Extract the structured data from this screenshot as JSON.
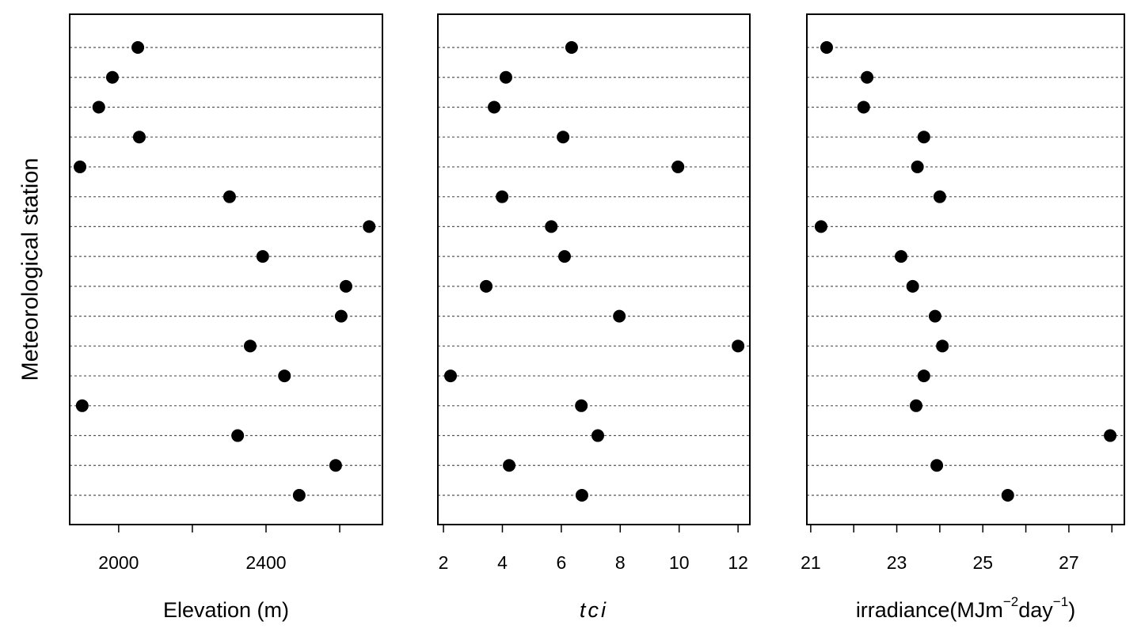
{
  "chart_data": [
    {
      "type": "dot",
      "y_label": "Meteorological station",
      "x_label": [
        {
          "text": "Elevation (m)"
        }
      ],
      "categories": [
        null,
        null,
        null,
        null,
        null,
        null,
        null,
        null,
        null,
        null,
        null,
        null,
        null,
        null,
        null,
        null
      ],
      "values": [
        2052,
        1983,
        1946,
        2056,
        1895,
        2301,
        2680,
        2391,
        2617,
        2604,
        2357,
        2450,
        1901,
        2323,
        2589,
        2490
      ],
      "color": "#000000",
      "xlim": [
        1867,
        2716
      ],
      "xticks": [
        2000,
        {
          "value": 2200,
          "label": null
        },
        2400,
        {
          "value": 2600,
          "label": null
        }
      ],
      "grid": true
    },
    {
      "type": "dot",
      "x_label": [
        {
          "text": "tci",
          "italic": true
        }
      ],
      "categories": [
        null,
        null,
        null,
        null,
        null,
        null,
        null,
        null,
        null,
        null,
        null,
        null,
        null,
        null,
        null,
        null
      ],
      "values": [
        6.35,
        4.12,
        3.72,
        6.06,
        9.96,
        3.99,
        5.66,
        6.11,
        3.45,
        7.97,
        12.0,
        2.24,
        6.68,
        7.24,
        4.23,
        6.7
      ],
      "color": "#000000",
      "xlim": [
        1.81,
        12.4
      ],
      "xticks": [
        2,
        4,
        6,
        8,
        10,
        12
      ],
      "grid": true
    },
    {
      "type": "dot",
      "x_label": [
        {
          "text": "irradiance(MJm"
        },
        {
          "text": "−2",
          "sup": true
        },
        {
          "text": "day"
        },
        {
          "text": "−1",
          "sup": true
        },
        {
          "text": ")"
        }
      ],
      "categories": [
        null,
        null,
        null,
        null,
        null,
        null,
        null,
        null,
        null,
        null,
        null,
        null,
        null,
        null,
        null,
        null
      ],
      "values": [
        21.37,
        22.31,
        22.23,
        23.63,
        23.48,
        24.0,
        21.24,
        23.1,
        23.37,
        23.89,
        24.06,
        23.63,
        23.45,
        27.96,
        23.93,
        25.58
      ],
      "color": "#000000",
      "xlim": [
        20.91,
        28.29
      ],
      "xticks": [
        21,
        {
          "value": 22,
          "label": null
        },
        23,
        {
          "value": 24,
          "label": null
        },
        25,
        {
          "value": 26,
          "label": null
        },
        27,
        {
          "value": 28,
          "label": null
        }
      ],
      "grid": true
    }
  ]
}
